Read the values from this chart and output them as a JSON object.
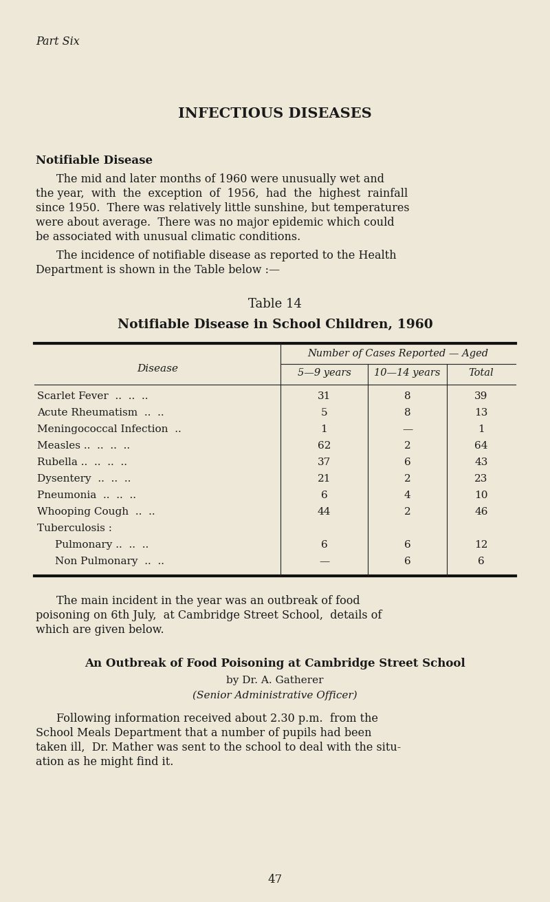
{
  "bg_color": "#ede8d8",
  "text_color": "#1a1a1a",
  "part_six": "Part Six",
  "section_title": "INFECTIOUS DISEASES",
  "subsection_title": "Notifiable Disease",
  "p1_lines": [
    "The mid and later months of 1960 were unusually wet and",
    "the year,  with  the  exception  of  1956,  had  the  highest  rainfall",
    "since 1950.  There was relatively little sunshine, but temperatures",
    "were about average.  There was no major epidemic which could",
    "be associated with unusual climatic conditions."
  ],
  "p2_lines": [
    "The incidence of notifiable disease as reported to the Health",
    "Department is shown in the Table below :—"
  ],
  "table_label": "Table 14",
  "table_title": "Notifiable Disease in School Children, 1960",
  "col_header_main": "Number of Cases Reported — Aged",
  "col_header_disease": "Disease",
  "col_header_5_9": "5—9 years",
  "col_header_10_14": "10—14 years",
  "col_header_total": "Total",
  "diseases": [
    "Scarlet Fever  ..  ..  ..",
    "Acute Rheumatism  ..  ..",
    "Meningococcal Infection  ..",
    "Measles ..  ..  ..  ..",
    "Rubella ..  ..  ..  ..",
    "Dysentery  ..  ..  ..",
    "Pneumonia  ..  ..  ..",
    "Whooping Cough  ..  ..",
    "Tuberculosis :",
    "Pulmonary ..  ..  ..",
    "Non Pulmonary  ..  .."
  ],
  "disease_indent": [
    0,
    0,
    0,
    0,
    0,
    0,
    0,
    0,
    0,
    1,
    1
  ],
  "col_5_9": [
    "31",
    "5",
    "1",
    "62",
    "37",
    "21",
    "6",
    "44",
    "",
    "6",
    "—"
  ],
  "col_10_14": [
    "8",
    "8",
    "—",
    "2",
    "6",
    "2",
    "4",
    "2",
    "",
    "6",
    "6"
  ],
  "col_total": [
    "39",
    "13",
    "1",
    "64",
    "43",
    "23",
    "10",
    "46",
    "",
    "12",
    "6"
  ],
  "p3_lines": [
    "The main incident in the year was an outbreak of food",
    "poisoning on 6th July,  at Cambridge Street School,  details of",
    "which are given below."
  ],
  "sub2_title": "An Outbreak of Food Poisoning at Cambridge Street School",
  "sub2_by": "by Dr. A. Gatherer",
  "sub2_role": "(Senior Administrative Officer)",
  "p4_lines": [
    "Following information received about 2.30 p.m.  from the",
    "School Meals Department that a number of pupils had been",
    "taken ill,  Dr. Mather was sent to the school to deal with the situ-",
    "ation as he might find it."
  ],
  "page_number": "47",
  "fig_w": 8.0,
  "fig_h": 13.11,
  "dpi": 100
}
